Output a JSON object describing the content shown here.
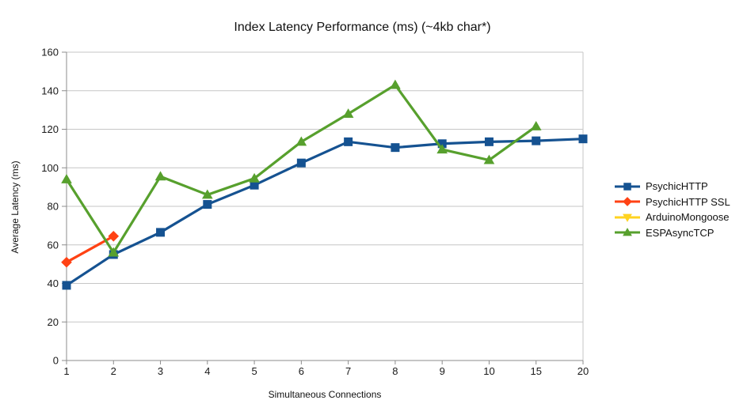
{
  "chart_data": {
    "type": "line",
    "title": "Index Latency Performance (ms) (~4kb char*)",
    "xlabel": "Simultaneous Connections",
    "ylabel": "Average Latency (ms)",
    "categories": [
      "1",
      "2",
      "3",
      "4",
      "5",
      "6",
      "7",
      "8",
      "9",
      "10",
      "15",
      "20"
    ],
    "ylim": [
      0,
      160
    ],
    "ytick_step": 20,
    "grid": "horizontal",
    "legend_position": "right",
    "series": [
      {
        "name": "PsychicHTTP",
        "color": "#155291",
        "marker": "square",
        "values": [
          39,
          55,
          66.5,
          81,
          91,
          102.5,
          113.5,
          110.5,
          112.5,
          113.5,
          114,
          115
        ]
      },
      {
        "name": "PsychicHTTP SSL",
        "color": "#FF4214",
        "marker": "diamond",
        "values": [
          51,
          64.5,
          null,
          null,
          null,
          null,
          null,
          null,
          null,
          null,
          null,
          null
        ]
      },
      {
        "name": "ArduinoMongoose",
        "color": "#FFD320",
        "marker": "triangle-down",
        "values": [
          null,
          null,
          null,
          null,
          null,
          null,
          null,
          null,
          null,
          null,
          null,
          null
        ]
      },
      {
        "name": "ESPAsyncTCP",
        "color": "#57A02D",
        "marker": "triangle-up",
        "values": [
          94,
          56,
          95.5,
          86,
          94.5,
          113.5,
          128,
          143,
          109.5,
          104,
          121.5,
          null
        ]
      }
    ]
  }
}
